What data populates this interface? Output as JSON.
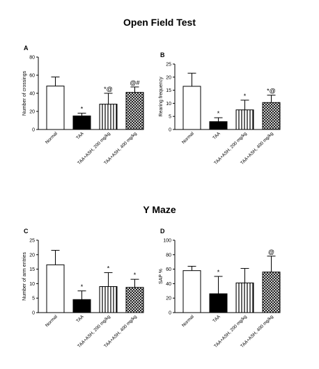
{
  "sections": {
    "top_title": "Open Field Test",
    "bottom_title": "Y Maze"
  },
  "categories": [
    "Normal",
    "TAA",
    "TAA+ASH, 200 mg/kg",
    "TAA+ASH, 400 mg/kg"
  ],
  "bar_colors": {
    "Normal": "#ffffff",
    "TAA": "#000000",
    "hatch_stroke": "#000000"
  },
  "chart_data": [
    {
      "type": "bar",
      "panel": "A",
      "title": "",
      "xlabel": "",
      "ylabel": "Number of crossings",
      "ylim": [
        0,
        80
      ],
      "yticks": [
        0,
        20,
        40,
        60,
        80
      ],
      "categories": [
        "Normal",
        "TAA",
        "TAA+ASH, 200 mg/kg",
        "TAA+ASH, 400 mg/kg"
      ],
      "values": [
        48,
        15,
        28,
        41
      ],
      "errors": [
        10,
        3,
        12,
        6
      ],
      "annotations": [
        "",
        "*",
        "*@",
        "@#"
      ]
    },
    {
      "type": "bar",
      "panel": "B",
      "title": "",
      "xlabel": "",
      "ylabel": "Rearing frequency",
      "ylim": [
        0,
        25
      ],
      "yticks": [
        0,
        5,
        10,
        15,
        20,
        25
      ],
      "categories": [
        "Normal",
        "TAA",
        "TAA+ASH, 200 mg/kg",
        "TAA+ASH, 400 mg/kg"
      ],
      "values": [
        16.5,
        3,
        7.5,
        10.3
      ],
      "errors": [
        5,
        1.5,
        3.7,
        2.8
      ],
      "annotations": [
        "",
        "*",
        "*",
        "*@"
      ]
    },
    {
      "type": "bar",
      "panel": "C",
      "title": "",
      "xlabel": "",
      "ylabel": "Number of arm entries",
      "ylim": [
        0,
        25
      ],
      "yticks": [
        0,
        5,
        10,
        15,
        20,
        25
      ],
      "categories": [
        "Normal",
        "TAA",
        "TAA+ASH, 200 mg/kg",
        "TAA+ASH, 400 mg/kg"
      ],
      "values": [
        16.5,
        4.5,
        9,
        8.7
      ],
      "errors": [
        5,
        3,
        4.8,
        2.8
      ],
      "annotations": [
        "",
        "*",
        "*",
        "*"
      ]
    },
    {
      "type": "bar",
      "panel": "D",
      "title": "",
      "xlabel": "",
      "ylabel": "SAP %",
      "ylim": [
        0,
        100
      ],
      "yticks": [
        0,
        20,
        40,
        60,
        80,
        100
      ],
      "categories": [
        "Normal",
        "TAA",
        "TAA+ASH, 200 mg/kg",
        "TAA+ASH, 400 mg/kg"
      ],
      "values": [
        58,
        26,
        41,
        56
      ],
      "errors": [
        6,
        24,
        20,
        22
      ],
      "annotations": [
        "",
        "*",
        "",
        "@"
      ]
    }
  ]
}
